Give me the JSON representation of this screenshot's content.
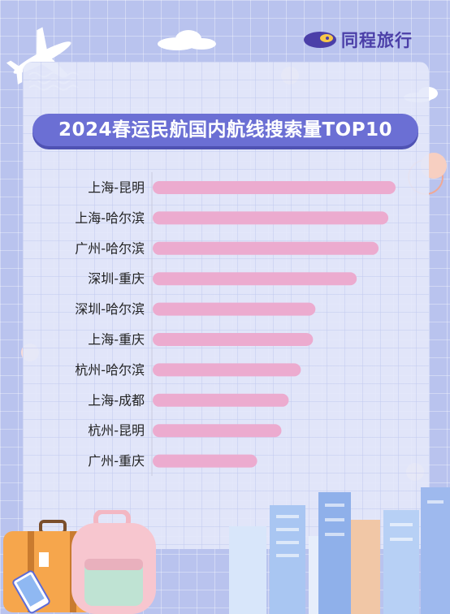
{
  "brand": {
    "name": "同程旅行"
  },
  "colors": {
    "background": "#b9c3ee",
    "bar": "#ecabcf",
    "title_banner": "#6b6fd4",
    "label": "#222222"
  },
  "chart_data": {
    "type": "bar",
    "orientation": "horizontal",
    "title": "2024春运民航国内航线搜索量TOP10",
    "categories": [
      "上海-昆明",
      "上海-哈尔滨",
      "广州-哈尔滨",
      "深圳-重庆",
      "深圳-哈尔滨",
      "上海-重庆",
      "杭州-哈尔滨",
      "上海-成都",
      "杭州-昆明",
      "广州-重庆"
    ],
    "values": [
      100,
      97,
      93,
      84,
      67,
      66,
      61,
      56,
      53,
      43
    ],
    "xlim": [
      0,
      100
    ],
    "axis_labels_shown": false,
    "grid": false,
    "legend": "none"
  }
}
